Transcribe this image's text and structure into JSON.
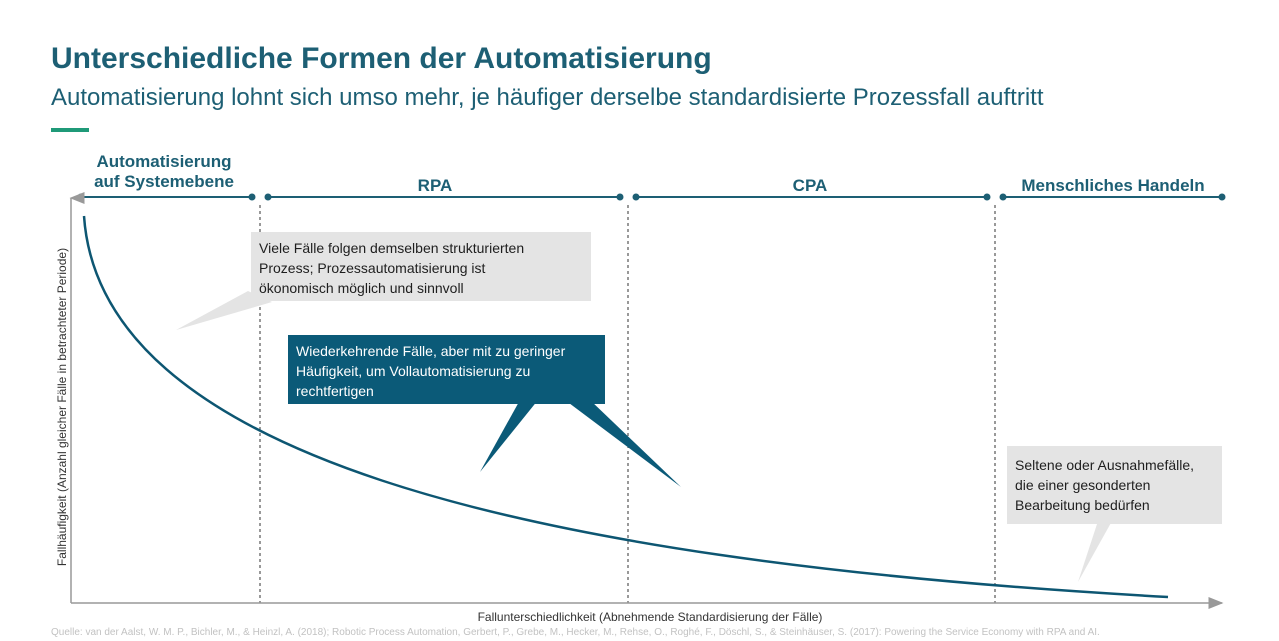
{
  "title": "Unterschiedliche Formen der Automatisierung",
  "subtitle": "Automatisierung lohnt sich umso mehr, je häufiger derselbe standardisierte Prozessfall auftritt",
  "phases": {
    "system_line1": "Automatisierung",
    "system_line2": "auf Systemebene",
    "rpa": "RPA",
    "cpa": "CPA",
    "human": "Menschliches Handeln"
  },
  "callouts": {
    "many_cases": [
      "Viele Fälle folgen demselben strukturierten",
      "Prozess; Prozessautomatisierung  ist",
      "ökonomisch  möglich und sinnvoll"
    ],
    "recurring": [
      "Wiederkehrende  Fälle, aber mit zu geringer",
      "Häufigkeit,  um Vollautomatisierung  zu",
      "rechtfertigen"
    ],
    "rare": [
      "Seltene oder Ausnahmefälle,",
      "die einer gesonderten",
      "Bearbeitung  bedürfen"
    ]
  },
  "axes": {
    "y_label": "Fallhäufigkeit (Anzahl gleicher Fälle in betrachteter Periode)",
    "x_label": "Fallunterschiedlichkeit (Abnehmende Standardisierung der Fälle)"
  },
  "source": "Quelle: van der Aalst, W. M. P., Bichler, M., & Heinzl, A. (2018); Robotic Process Automation, Gerbert, P., Grebe, M., Hecker, M., Rehse, O., Roghé, F., Döschl, S., & Steinhäuser, S. (2017): Powering the Service Economy with RPA and AI.",
  "colors": {
    "primary": "#1d5f74",
    "accent": "#1f9a78",
    "callout_gray": "#e4e4e4",
    "callout_teal": "#0b5a78"
  }
}
